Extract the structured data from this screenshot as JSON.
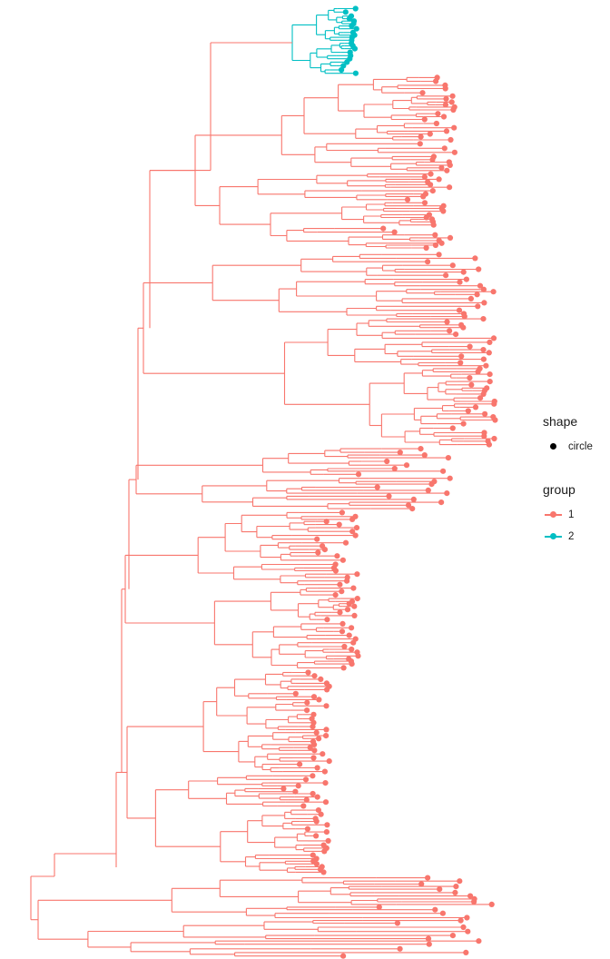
{
  "chart_data": {
    "type": "phylogenetic-tree",
    "layout": "rectangular",
    "tip_marker": "circle",
    "grid": false,
    "legend_placement": "right",
    "groups": [
      {
        "id": "1",
        "color": "#F8766D"
      },
      {
        "id": "2",
        "color": "#00BFC4"
      }
    ]
  },
  "legend": {
    "shape": {
      "title": "shape",
      "items": [
        {
          "label": "circle",
          "color": "#000000"
        }
      ]
    },
    "group": {
      "title": "group",
      "items": [
        {
          "label": "1",
          "color": "#F8766D"
        },
        {
          "label": "2",
          "color": "#00BFC4"
        }
      ]
    }
  }
}
